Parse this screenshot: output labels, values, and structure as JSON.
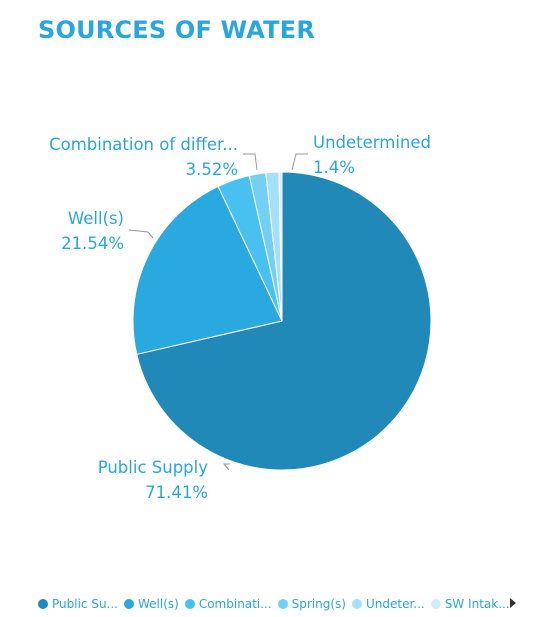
{
  "title": "SOURCES OF WATER",
  "chart_data": {
    "type": "pie",
    "title": "SOURCES OF WATER",
    "series": [
      {
        "name": "Public Supply",
        "value": 71.41,
        "color": "#2089B8",
        "label": "Public Supply",
        "pct": "71.41%"
      },
      {
        "name": "Well(s)",
        "value": 21.54,
        "color": "#2AA9E1",
        "label": "Well(s)",
        "pct": "21.54%"
      },
      {
        "name": "Combination of different sources",
        "value": 3.52,
        "color": "#48C1F0",
        "label": "Combination of differ...",
        "pct": "3.52%"
      },
      {
        "name": "Spring(s)",
        "value": 1.8,
        "color": "#74CFF5",
        "label": "",
        "pct": ""
      },
      {
        "name": "Undetermined",
        "value": 1.4,
        "color": "#A6DFF8",
        "label": "Undetermined",
        "pct": "1.4%"
      },
      {
        "name": "SW Intake",
        "value": 0.33,
        "color": "#D3EEFB",
        "label": "",
        "pct": ""
      }
    ],
    "legend_position": "bottom"
  },
  "legend": {
    "items": [
      {
        "label": "Public Su...",
        "color": "#2089B8"
      },
      {
        "label": "Well(s)",
        "color": "#2AA9E1"
      },
      {
        "label": "Combinati...",
        "color": "#48C1F0"
      },
      {
        "label": "Spring(s)",
        "color": "#74CFF5"
      },
      {
        "label": "Undeter...",
        "color": "#A6DFF8"
      },
      {
        "label": "SW Intak...",
        "color": "#D3EEFB"
      }
    ],
    "next_icon": "chevron-right-icon"
  }
}
